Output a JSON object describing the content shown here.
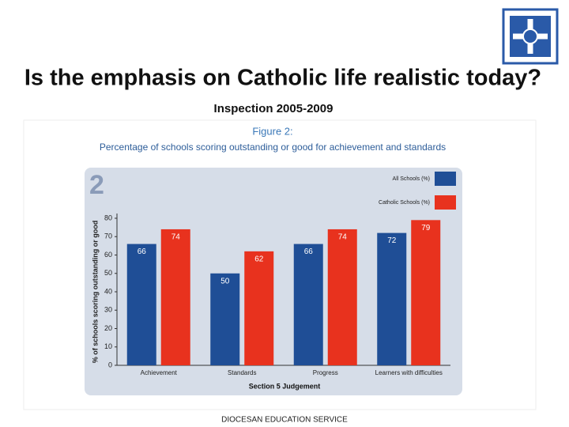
{
  "slide": {
    "title": "Is the emphasis on Catholic life realistic today?",
    "subtitle": "Inspection 2005-2009",
    "footer": "DIOCESAN EDUCATION SERVICE"
  },
  "chart_data": {
    "type": "bar",
    "figure_label": "Figure 2:",
    "title": "Percentage of schools scoring outstanding or good for achievement and standards",
    "panel_number": "2",
    "y_label": "% of schools scoring outstanding or good",
    "x_label": "Section 5 Judgement",
    "categories": [
      "Achievement",
      "Standards",
      "Progress",
      "Learners with difficulties"
    ],
    "series": [
      {
        "name": "All Schools (%)",
        "color": "#1f4e96",
        "values": [
          66,
          50,
          66,
          72
        ]
      },
      {
        "name": "Catholic Schools (%)",
        "color": "#e8321e",
        "values": [
          74,
          62,
          74,
          79
        ]
      }
    ],
    "ylim": [
      0,
      80
    ],
    "yticks": [
      0,
      10,
      20,
      30,
      40,
      50,
      60,
      70,
      80
    ],
    "legend": "top-right"
  }
}
